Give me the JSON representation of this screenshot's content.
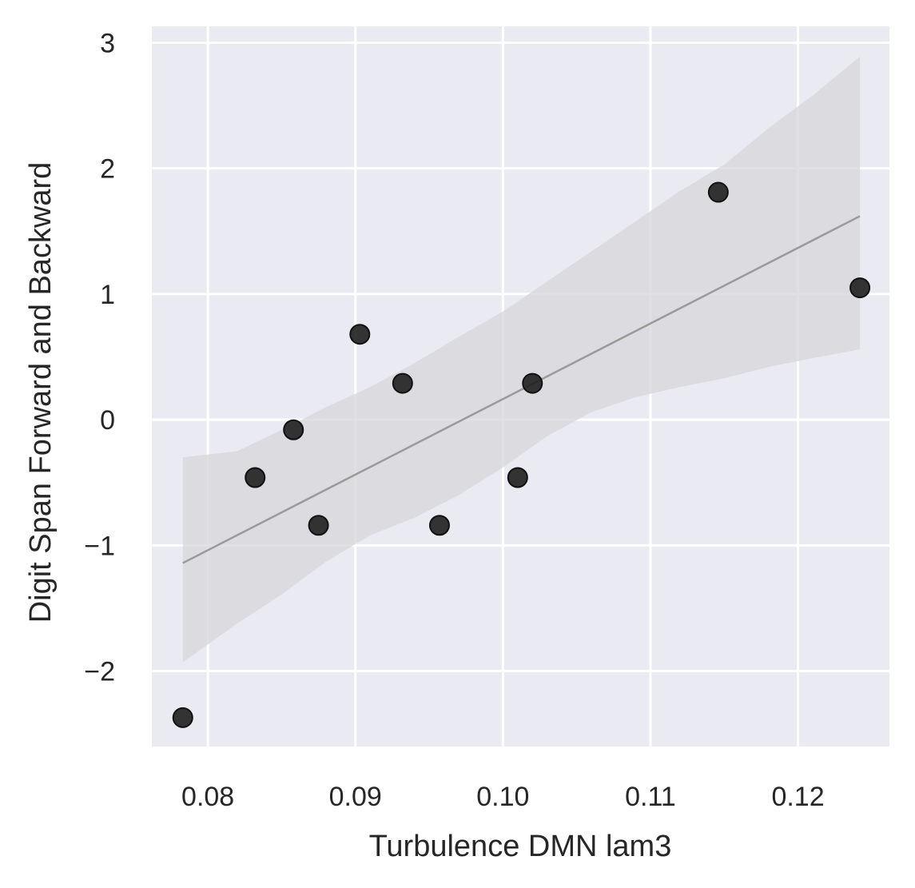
{
  "chart_data": {
    "type": "scatter",
    "xlabel": "Turbulence DMN lam3",
    "ylabel": "Digit Span Forward and Backward",
    "xlim": [
      0.0762,
      0.1262
    ],
    "ylim": [
      -2.6,
      3.13
    ],
    "xticks": [
      0.08,
      0.09,
      0.1,
      0.11,
      0.12
    ],
    "xtick_labels": [
      "0.08",
      "0.09",
      "0.10",
      "0.11",
      "0.12"
    ],
    "yticks": [
      3,
      2,
      1,
      0,
      -1,
      -2
    ],
    "ytick_labels": [
      "3",
      "2",
      "1",
      "0",
      "−1",
      "−2"
    ],
    "grid": true,
    "background_color": "#eaeaf2",
    "point_color": "#1f1f1f",
    "line_color": "#9a9a9a",
    "band_color": "#d6d6da",
    "points": [
      {
        "x": 0.0783,
        "y": -2.37
      },
      {
        "x": 0.0832,
        "y": -0.46
      },
      {
        "x": 0.0858,
        "y": -0.08
      },
      {
        "x": 0.0875,
        "y": -0.84
      },
      {
        "x": 0.0903,
        "y": 0.68
      },
      {
        "x": 0.0932,
        "y": 0.29
      },
      {
        "x": 0.0957,
        "y": -0.84
      },
      {
        "x": 0.101,
        "y": -0.46
      },
      {
        "x": 0.102,
        "y": 0.29
      },
      {
        "x": 0.1146,
        "y": 1.81
      },
      {
        "x": 0.1242,
        "y": 1.05
      }
    ],
    "regression_line": {
      "x": [
        0.0783,
        0.1242
      ],
      "y": [
        -1.14,
        1.62
      ]
    },
    "confidence_band": {
      "x": [
        0.0783,
        0.082,
        0.085,
        0.088,
        0.091,
        0.094,
        0.097,
        0.1,
        0.103,
        0.106,
        0.109,
        0.112,
        0.115,
        0.118,
        0.121,
        0.1242
      ],
      "upper": [
        -0.3,
        -0.25,
        -0.08,
        0.1,
        0.26,
        0.45,
        0.66,
        0.86,
        1.1,
        1.34,
        1.58,
        1.82,
        2.03,
        2.32,
        2.58,
        2.89
      ],
      "lower": [
        -1.93,
        -1.62,
        -1.39,
        -1.13,
        -0.92,
        -0.78,
        -0.6,
        -0.38,
        -0.13,
        0.06,
        0.18,
        0.26,
        0.33,
        0.42,
        0.49,
        0.56
      ]
    }
  }
}
